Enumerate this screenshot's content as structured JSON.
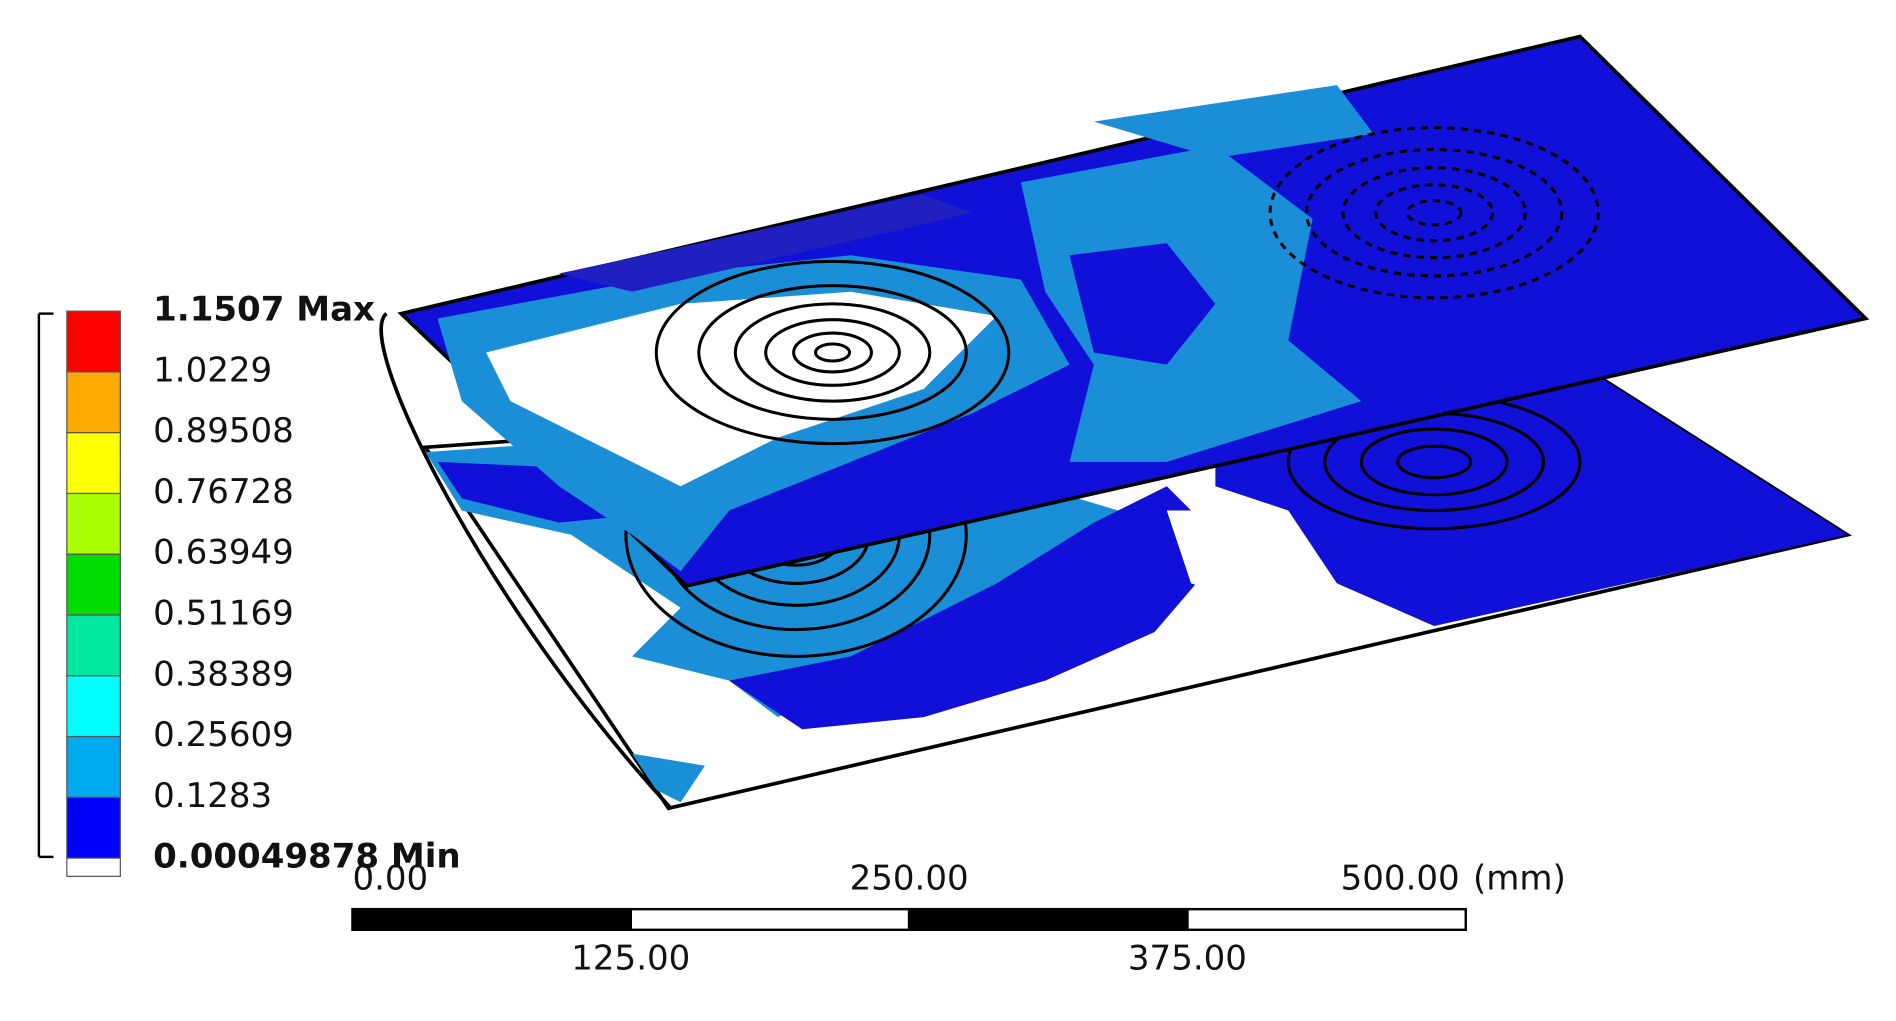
{
  "legend": {
    "labels": [
      "1.1507 Max",
      "1.0229",
      "0.89508",
      "0.76728",
      "0.63949",
      "0.51169",
      "0.38389",
      "0.25609",
      "0.1283",
      "0.00049878 Min"
    ],
    "colors": [
      "#ff0000",
      "#ffaa00",
      "#ffff00",
      "#aaff00",
      "#00dd00",
      "#00e8a0",
      "#00ffff",
      "#00aaee",
      "#0000ff",
      "#ffffff"
    ]
  },
  "scale_bar": {
    "top_labels": [
      "0.00",
      "250.00",
      "500.00"
    ],
    "unit": "(mm)",
    "bottom_labels": [
      "125.00",
      "375.00"
    ]
  }
}
